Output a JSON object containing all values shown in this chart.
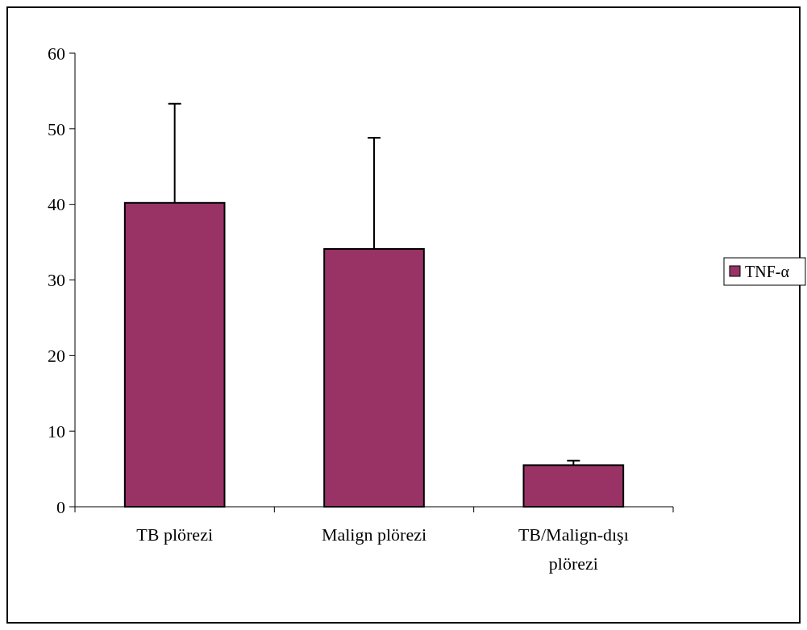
{
  "chart_data": {
    "type": "bar",
    "categories": [
      "TB plörezi",
      "Malign plörezi",
      "TB/Malign-dışı plörezi"
    ],
    "series": [
      {
        "name": "TNF-α",
        "color": "#993366",
        "values": [
          40.2,
          34.1,
          5.5
        ],
        "errors": [
          [
            40.2,
            53.3
          ],
          [
            34.1,
            48.8
          ],
          [
            5.5,
            6.1
          ]
        ]
      }
    ],
    "ylim": [
      0,
      60
    ],
    "yticks": [
      0,
      10,
      20,
      30,
      40,
      50,
      60
    ],
    "grid": false,
    "legend": "right"
  }
}
